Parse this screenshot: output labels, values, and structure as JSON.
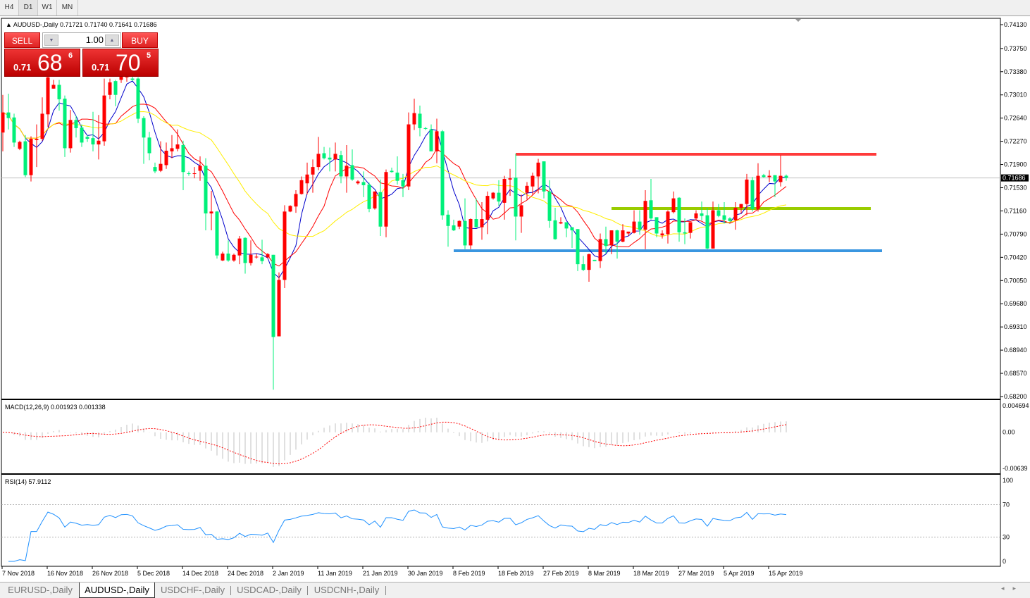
{
  "toolbar": {
    "timeframes": [
      "H4",
      "D1",
      "W1",
      "MN"
    ],
    "active": "D1"
  },
  "header": {
    "symbol_line": "AUDUSD-,Daily",
    "ohlc_line": "0.71721 0.71740 0.71641 0.71686"
  },
  "trade_panel": {
    "sell_label": "SELL",
    "buy_label": "BUY",
    "lot": "1.00",
    "sell": {
      "prefix": "0.71",
      "big": "68",
      "sup": "6"
    },
    "buy": {
      "prefix": "0.71",
      "big": "70",
      "sup": "5"
    },
    "color": "#dd2222"
  },
  "current_price": "0.71686",
  "macd_label": "MACD(12,26,9) 0.001923 0.001338",
  "rsi_label": "RSI(14) 57.9112",
  "macd_axis": [
    "0.004694",
    "0.00",
    "-0.00639"
  ],
  "rsi_axis": [
    "100",
    "70",
    "30",
    "0"
  ],
  "tabs": [
    "EURUSD-,Daily",
    "AUDUSD-,Daily",
    "USDCHF-,Daily",
    "USDCAD-,Daily",
    "USDCNH-,Daily"
  ],
  "active_tab": "AUDUSD-,Daily",
  "chart_data": {
    "type": "candlestick",
    "symbol": "AUDUSD-",
    "timeframe": "Daily",
    "up_color": "#ff0000",
    "down_color": "#00f07a",
    "ylim": [
      0.682,
      0.7413
    ],
    "y_tick_labels": [
      "0.74130",
      "0.73750",
      "0.73380",
      "0.73010",
      "0.72640",
      "0.72270",
      "0.71900",
      "0.71530",
      "0.71160",
      "0.70790",
      "0.70420",
      "0.70050",
      "0.69680",
      "0.69310",
      "0.68940",
      "0.68570",
      "0.68200"
    ],
    "x_tick_labels": [
      "7 Nov 2018",
      "16 Nov 2018",
      "26 Nov 2018",
      "5 Dec 2018",
      "14 Dec 2018",
      "24 Dec 2018",
      "2 Jan 2019",
      "11 Jan 2019",
      "21 Jan 2019",
      "30 Jan 2019",
      "8 Feb 2019",
      "18 Feb 2019",
      "27 Feb 2019",
      "8 Mar 2019",
      "18 Mar 2019",
      "27 Mar 2019",
      "5 Apr 2019",
      "15 Apr 2019"
    ],
    "x_tick_every_bars": 8,
    "moving_averages": [
      {
        "period": 5,
        "color": "#0000cc"
      },
      {
        "period": 10,
        "color": "#ff0000"
      },
      {
        "period": 20,
        "color": "#ffee00"
      }
    ],
    "horizontal_lines": [
      {
        "price": 0.72064,
        "color": "#ff3b3b",
        "start_bar": 91,
        "end_bar": 155
      },
      {
        "price": 0.71199,
        "color": "#99cc00",
        "start_bar": 108,
        "end_bar": 154
      },
      {
        "price": 0.70525,
        "color": "#3a96e0",
        "start_bar": 80,
        "end_bar": 156
      }
    ],
    "ohlc": [
      [
        0.7241,
        0.7301,
        0.7211,
        0.7273
      ],
      [
        0.7273,
        0.7303,
        0.7246,
        0.7264
      ],
      [
        0.7265,
        0.7271,
        0.7218,
        0.7225
      ],
      [
        0.7215,
        0.7228,
        0.7213,
        0.7226
      ],
      [
        0.7227,
        0.7237,
        0.717,
        0.7173
      ],
      [
        0.7173,
        0.7235,
        0.7163,
        0.7231
      ],
      [
        0.7229,
        0.7254,
        0.7186,
        0.7231
      ],
      [
        0.7231,
        0.7297,
        0.7228,
        0.7271
      ],
      [
        0.727,
        0.7335,
        0.725,
        0.7329
      ],
      [
        0.7311,
        0.7325,
        0.7311,
        0.7317
      ],
      [
        0.7317,
        0.7325,
        0.7276,
        0.7294
      ],
      [
        0.7295,
        0.73,
        0.7202,
        0.7216
      ],
      [
        0.7216,
        0.7277,
        0.7209,
        0.7261
      ],
      [
        0.7261,
        0.7268,
        0.7233,
        0.7248
      ],
      [
        0.7249,
        0.7254,
        0.7218,
        0.7225
      ],
      [
        0.7234,
        0.7237,
        0.7226,
        0.7231
      ],
      [
        0.7232,
        0.7274,
        0.7211,
        0.7222
      ],
      [
        0.7222,
        0.7269,
        0.7198,
        0.7228
      ],
      [
        0.7227,
        0.7327,
        0.722,
        0.73
      ],
      [
        0.7301,
        0.7327,
        0.7294,
        0.7321
      ],
      [
        0.7323,
        0.7325,
        0.7283,
        0.7301
      ],
      [
        0.7325,
        0.7335,
        0.732,
        0.7333
      ],
      [
        0.7329,
        0.734,
        0.7322,
        0.7336
      ],
      [
        0.7327,
        0.7332,
        0.7323,
        0.7325
      ],
      [
        0.7327,
        0.7329,
        0.7256,
        0.7263
      ],
      [
        0.7264,
        0.7267,
        0.7191,
        0.7233
      ],
      [
        0.7233,
        0.7242,
        0.7197,
        0.7208
      ],
      [
        0.7186,
        0.7193,
        0.7176,
        0.7179
      ],
      [
        0.718,
        0.7227,
        0.7178,
        0.7191
      ],
      [
        0.7189,
        0.7225,
        0.7183,
        0.7212
      ],
      [
        0.7211,
        0.7237,
        0.72,
        0.7216
      ],
      [
        0.7215,
        0.7246,
        0.7211,
        0.7222
      ],
      [
        0.7221,
        0.7228,
        0.7149,
        0.7178
      ],
      [
        0.7176,
        0.7179,
        0.7172,
        0.7175
      ],
      [
        0.7175,
        0.7186,
        0.7168,
        0.7176
      ],
      [
        0.718,
        0.7203,
        0.7164,
        0.7188
      ],
      [
        0.7188,
        0.72,
        0.7085,
        0.7112
      ],
      [
        0.7112,
        0.7148,
        0.7085,
        0.7115
      ],
      [
        0.7115,
        0.7116,
        0.704,
        0.7045
      ],
      [
        0.7037,
        0.7051,
        0.7036,
        0.7048
      ],
      [
        0.7048,
        0.7069,
        0.7035,
        0.7037
      ],
      [
        0.7037,
        0.7048,
        0.7035,
        0.7046
      ],
      [
        0.7045,
        0.7076,
        0.7031,
        0.7072
      ],
      [
        0.7073,
        0.7074,
        0.7016,
        0.7033
      ],
      [
        0.7033,
        0.7069,
        0.7029,
        0.7046
      ],
      [
        0.7042,
        0.7048,
        0.704,
        0.7043
      ],
      [
        0.7042,
        0.707,
        0.7031,
        0.7036
      ],
      [
        0.7042,
        0.7049,
        0.704,
        0.7047
      ],
      [
        0.7046,
        0.7046,
        0.6831,
        0.6915
      ],
      [
        0.6916,
        0.7018,
        0.6916,
        0.7006
      ],
      [
        0.7006,
        0.7125,
        0.6993,
        0.7115
      ],
      [
        0.7115,
        0.7125,
        0.7114,
        0.7124
      ],
      [
        0.7123,
        0.7149,
        0.7113,
        0.7143
      ],
      [
        0.7143,
        0.7171,
        0.7142,
        0.7165
      ],
      [
        0.716,
        0.7193,
        0.7142,
        0.7174
      ],
      [
        0.7174,
        0.7198,
        0.7145,
        0.7186
      ],
      [
        0.7186,
        0.7234,
        0.7181,
        0.7207
      ],
      [
        0.7208,
        0.7218,
        0.7198,
        0.72
      ],
      [
        0.7201,
        0.7217,
        0.7179,
        0.7198
      ],
      [
        0.7198,
        0.7225,
        0.7179,
        0.7207
      ],
      [
        0.7205,
        0.7212,
        0.716,
        0.7171
      ],
      [
        0.7171,
        0.7221,
        0.7145,
        0.7188
      ],
      [
        0.7189,
        0.7214,
        0.7164,
        0.7166
      ],
      [
        0.716,
        0.7165,
        0.7158,
        0.7163
      ],
      [
        0.7162,
        0.7179,
        0.7138,
        0.7157
      ],
      [
        0.7158,
        0.7161,
        0.7114,
        0.7119
      ],
      [
        0.712,
        0.7147,
        0.7118,
        0.7147
      ],
      [
        0.7146,
        0.7166,
        0.7076,
        0.7091
      ],
      [
        0.7091,
        0.7182,
        0.7074,
        0.7178
      ],
      [
        0.718,
        0.7185,
        0.7177,
        0.7178
      ],
      [
        0.7177,
        0.7203,
        0.7158,
        0.7164
      ],
      [
        0.7165,
        0.7175,
        0.7138,
        0.7155
      ],
      [
        0.7155,
        0.7273,
        0.7149,
        0.7254
      ],
      [
        0.7254,
        0.7295,
        0.7245,
        0.7272
      ],
      [
        0.7271,
        0.7284,
        0.7235,
        0.7248
      ],
      [
        0.7248,
        0.725,
        0.7245,
        0.7247
      ],
      [
        0.7246,
        0.7254,
        0.7211,
        0.7211
      ],
      [
        0.7211,
        0.7263,
        0.7192,
        0.7243
      ],
      [
        0.7243,
        0.7245,
        0.7102,
        0.7109
      ],
      [
        0.711,
        0.7117,
        0.7059,
        0.7092
      ],
      [
        0.7093,
        0.7102,
        0.7084,
        0.7085
      ],
      [
        0.7091,
        0.7101,
        0.7087,
        0.71
      ],
      [
        0.71,
        0.7136,
        0.7055,
        0.7061
      ],
      [
        0.7061,
        0.7104,
        0.7055,
        0.7103
      ],
      [
        0.7103,
        0.7136,
        0.7089,
        0.709
      ],
      [
        0.709,
        0.713,
        0.707,
        0.7103
      ],
      [
        0.7102,
        0.7147,
        0.7079,
        0.714
      ],
      [
        0.7136,
        0.7146,
        0.7134,
        0.7145
      ],
      [
        0.7145,
        0.7165,
        0.7124,
        0.7131
      ],
      [
        0.7129,
        0.7172,
        0.7102,
        0.7167
      ],
      [
        0.7166,
        0.7183,
        0.714,
        0.7168
      ],
      [
        0.7169,
        0.7207,
        0.7069,
        0.7107
      ],
      [
        0.7107,
        0.7142,
        0.7081,
        0.7125
      ],
      [
        0.7145,
        0.7162,
        0.7134,
        0.7156
      ],
      [
        0.7155,
        0.7177,
        0.7142,
        0.7172
      ],
      [
        0.7171,
        0.7199,
        0.7144,
        0.7193
      ],
      [
        0.7195,
        0.7195,
        0.7136,
        0.7147
      ],
      [
        0.7147,
        0.7165,
        0.7089,
        0.71
      ],
      [
        0.7101,
        0.7121,
        0.707,
        0.7071
      ],
      [
        0.7096,
        0.7106,
        0.7095,
        0.7098
      ],
      [
        0.7098,
        0.7098,
        0.7074,
        0.7088
      ],
      [
        0.709,
        0.709,
        0.7057,
        0.7085
      ],
      [
        0.7087,
        0.7087,
        0.702,
        0.7031
      ],
      [
        0.7031,
        0.7044,
        0.702,
        0.7022
      ],
      [
        0.7022,
        0.7048,
        0.7003,
        0.7047
      ],
      [
        0.7038,
        0.7038,
        0.7036,
        0.7036
      ],
      [
        0.7036,
        0.708,
        0.7025,
        0.7071
      ],
      [
        0.7071,
        0.7091,
        0.7048,
        0.706
      ],
      [
        0.7061,
        0.7085,
        0.7047,
        0.7085
      ],
      [
        0.7085,
        0.7086,
        0.704,
        0.7067
      ],
      [
        0.7067,
        0.7095,
        0.7066,
        0.7085
      ],
      [
        0.708,
        0.7083,
        0.7076,
        0.7083
      ],
      [
        0.7081,
        0.7117,
        0.708,
        0.7099
      ],
      [
        0.7099,
        0.7117,
        0.7078,
        0.7086
      ],
      [
        0.7086,
        0.7149,
        0.7055,
        0.7132
      ],
      [
        0.7133,
        0.7167,
        0.7102,
        0.7104
      ],
      [
        0.7106,
        0.7106,
        0.7074,
        0.708
      ],
      [
        0.7077,
        0.7085,
        0.7072,
        0.708
      ],
      [
        0.7079,
        0.7117,
        0.7064,
        0.7115
      ],
      [
        0.7114,
        0.7147,
        0.7112,
        0.7136
      ],
      [
        0.7137,
        0.7138,
        0.7067,
        0.7082
      ],
      [
        0.7082,
        0.7104,
        0.7063,
        0.708
      ],
      [
        0.7081,
        0.7098,
        0.7072,
        0.7098
      ],
      [
        0.7104,
        0.7117,
        0.7102,
        0.7112
      ],
      [
        0.7112,
        0.7131,
        0.7101,
        0.7108
      ],
      [
        0.7109,
        0.7121,
        0.7055,
        0.7056
      ],
      [
        0.7056,
        0.7131,
        0.7056,
        0.7117
      ],
      [
        0.7117,
        0.7127,
        0.7106,
        0.7108
      ],
      [
        0.7109,
        0.713,
        0.7096,
        0.7102
      ],
      [
        0.7104,
        0.7106,
        0.7099,
        0.71
      ],
      [
        0.7101,
        0.713,
        0.7086,
        0.7121
      ],
      [
        0.7121,
        0.7127,
        0.7112,
        0.7127
      ],
      [
        0.7127,
        0.7175,
        0.7109,
        0.7166
      ],
      [
        0.7165,
        0.717,
        0.7115,
        0.7119
      ],
      [
        0.7119,
        0.7192,
        0.7115,
        0.7172
      ],
      [
        0.7173,
        0.7175,
        0.7169,
        0.717
      ],
      [
        0.717,
        0.7181,
        0.7162,
        0.7172
      ],
      [
        0.7173,
        0.7173,
        0.7138,
        0.7163
      ],
      [
        0.7162,
        0.7205,
        0.7155,
        0.7172
      ],
      [
        0.71721,
        0.7174,
        0.71641,
        0.71686
      ]
    ]
  }
}
